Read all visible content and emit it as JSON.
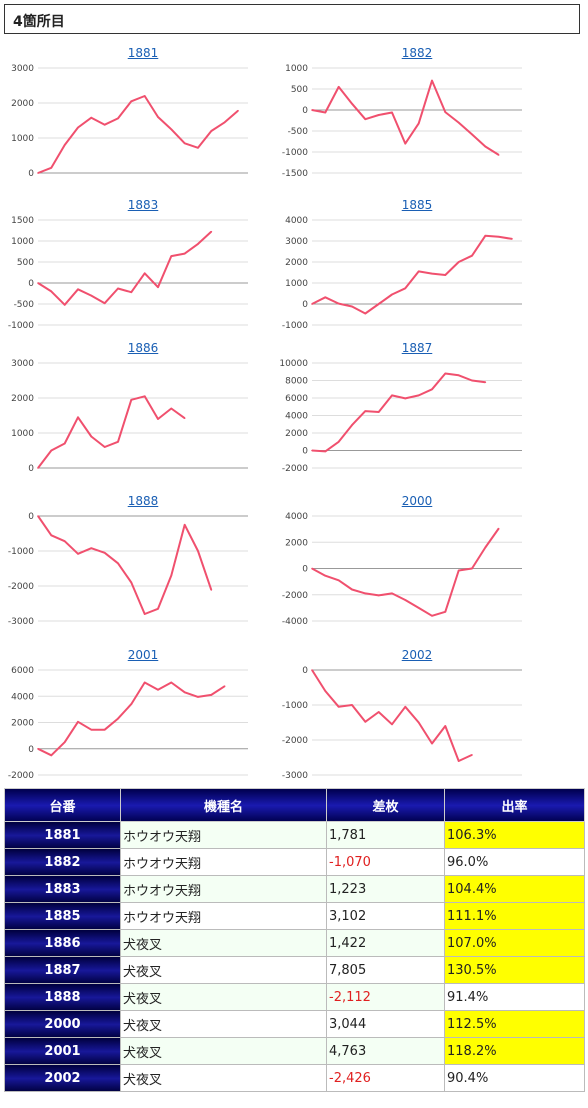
{
  "header": {
    "title": "4箇所目"
  },
  "chart_data": [
    {
      "type": "line",
      "title": "1881",
      "yticks": [
        3000,
        2000,
        1000,
        0
      ],
      "ylim": [
        0,
        3000
      ],
      "y": [
        0,
        150,
        800,
        1300,
        1580,
        1380,
        1560,
        2050,
        2200,
        1600,
        1250,
        850,
        720,
        1200,
        1450,
        1781
      ]
    },
    {
      "type": "line",
      "title": "1882",
      "yticks": [
        1000,
        500,
        0,
        -500,
        -1000,
        -1500
      ],
      "ylim": [
        -1500,
        1000
      ],
      "y": [
        0,
        -60,
        550,
        150,
        -220,
        -120,
        -60,
        -800,
        -320,
        700,
        -50,
        -300,
        -580,
        -870,
        -1070
      ]
    },
    {
      "type": "line",
      "title": "1883",
      "yticks": [
        1500,
        1000,
        500,
        0,
        -500,
        -1000
      ],
      "ylim": [
        -1000,
        1500
      ],
      "y": [
        0,
        -200,
        -520,
        -150,
        -300,
        -480,
        -130,
        -220,
        230,
        -100,
        640,
        700,
        930,
        1223
      ]
    },
    {
      "type": "line",
      "title": "1885",
      "yticks": [
        4000,
        3000,
        2000,
        1000,
        0,
        -1000
      ],
      "ylim": [
        -1000,
        4000
      ],
      "y": [
        0,
        320,
        20,
        -120,
        -450,
        0,
        450,
        750,
        1550,
        1450,
        1380,
        2000,
        2300,
        3250,
        3200,
        3102
      ]
    },
    {
      "type": "line",
      "title": "1886",
      "yticks": [
        3000,
        2000,
        1000,
        0
      ],
      "ylim": [
        0,
        3000
      ],
      "y": [
        0,
        500,
        700,
        1450,
        900,
        600,
        750,
        1950,
        2050,
        1400,
        1700,
        1422
      ]
    },
    {
      "type": "line",
      "title": "1887",
      "yticks": [
        10000,
        8000,
        6000,
        4000,
        2000,
        0,
        -2000
      ],
      "ylim": [
        -2000,
        10000
      ],
      "y": [
        0,
        -100,
        1000,
        2900,
        4500,
        4400,
        6300,
        5950,
        6300,
        7000,
        8800,
        8600,
        8000,
        7805
      ]
    },
    {
      "type": "line",
      "title": "1888",
      "yticks": [
        0,
        -1000,
        -2000,
        -3000
      ],
      "ylim": [
        -3000,
        0
      ],
      "y": [
        0,
        -550,
        -720,
        -1080,
        -920,
        -1050,
        -1350,
        -1900,
        -2800,
        -2650,
        -1700,
        -250,
        -1000,
        -2112
      ]
    },
    {
      "type": "line",
      "title": "2000",
      "yticks": [
        4000,
        2000,
        0,
        -2000,
        -4000
      ],
      "ylim": [
        -4000,
        4000
      ],
      "y": [
        0,
        -550,
        -900,
        -1600,
        -1900,
        -2050,
        -1900,
        -2400,
        -3000,
        -3600,
        -3300,
        -150,
        0,
        1600,
        3044
      ]
    },
    {
      "type": "line",
      "title": "2001",
      "yticks": [
        6000,
        4000,
        2000,
        0,
        -2000
      ],
      "ylim": [
        -2000,
        6000
      ],
      "y": [
        0,
        -500,
        500,
        2050,
        1450,
        1450,
        2300,
        3400,
        5050,
        4500,
        5050,
        4300,
        3950,
        4100,
        4763
      ]
    },
    {
      "type": "line",
      "title": "2002",
      "yticks": [
        0,
        -1000,
        -2000,
        -3000
      ],
      "ylim": [
        -3000,
        0
      ],
      "y": [
        0,
        -600,
        -1050,
        -1000,
        -1480,
        -1200,
        -1550,
        -1050,
        -1500,
        -2100,
        -1600,
        -2600,
        -2426
      ]
    }
  ],
  "table": {
    "headers": [
      "台番",
      "機種名",
      "差枚",
      "出率"
    ],
    "rows": [
      {
        "num": "1881",
        "name": "ホウオウ天翔",
        "diff": "1,781",
        "rate": "106.3%",
        "neg": false,
        "hi": true
      },
      {
        "num": "1882",
        "name": "ホウオウ天翔",
        "diff": "-1,070",
        "rate": "96.0%",
        "neg": true,
        "hi": false
      },
      {
        "num": "1883",
        "name": "ホウオウ天翔",
        "diff": "1,223",
        "rate": "104.4%",
        "neg": false,
        "hi": true
      },
      {
        "num": "1885",
        "name": "ホウオウ天翔",
        "diff": "3,102",
        "rate": "111.1%",
        "neg": false,
        "hi": true
      },
      {
        "num": "1886",
        "name": "犬夜叉",
        "diff": "1,422",
        "rate": "107.0%",
        "neg": false,
        "hi": true
      },
      {
        "num": "1887",
        "name": "犬夜叉",
        "diff": "7,805",
        "rate": "130.5%",
        "neg": false,
        "hi": true
      },
      {
        "num": "1888",
        "name": "犬夜叉",
        "diff": "-2,112",
        "rate": "91.4%",
        "neg": true,
        "hi": false
      },
      {
        "num": "2000",
        "name": "犬夜叉",
        "diff": "3,044",
        "rate": "112.5%",
        "neg": false,
        "hi": true
      },
      {
        "num": "2001",
        "name": "犬夜叉",
        "diff": "4,763",
        "rate": "118.2%",
        "neg": false,
        "hi": true
      },
      {
        "num": "2002",
        "name": "犬夜叉",
        "diff": "-2,426",
        "rate": "90.4%",
        "neg": true,
        "hi": false
      }
    ]
  },
  "colors": {
    "line": "#f0506e",
    "grid": "#dddddd",
    "highlight": "#ffff00",
    "negative": "#e02020"
  }
}
